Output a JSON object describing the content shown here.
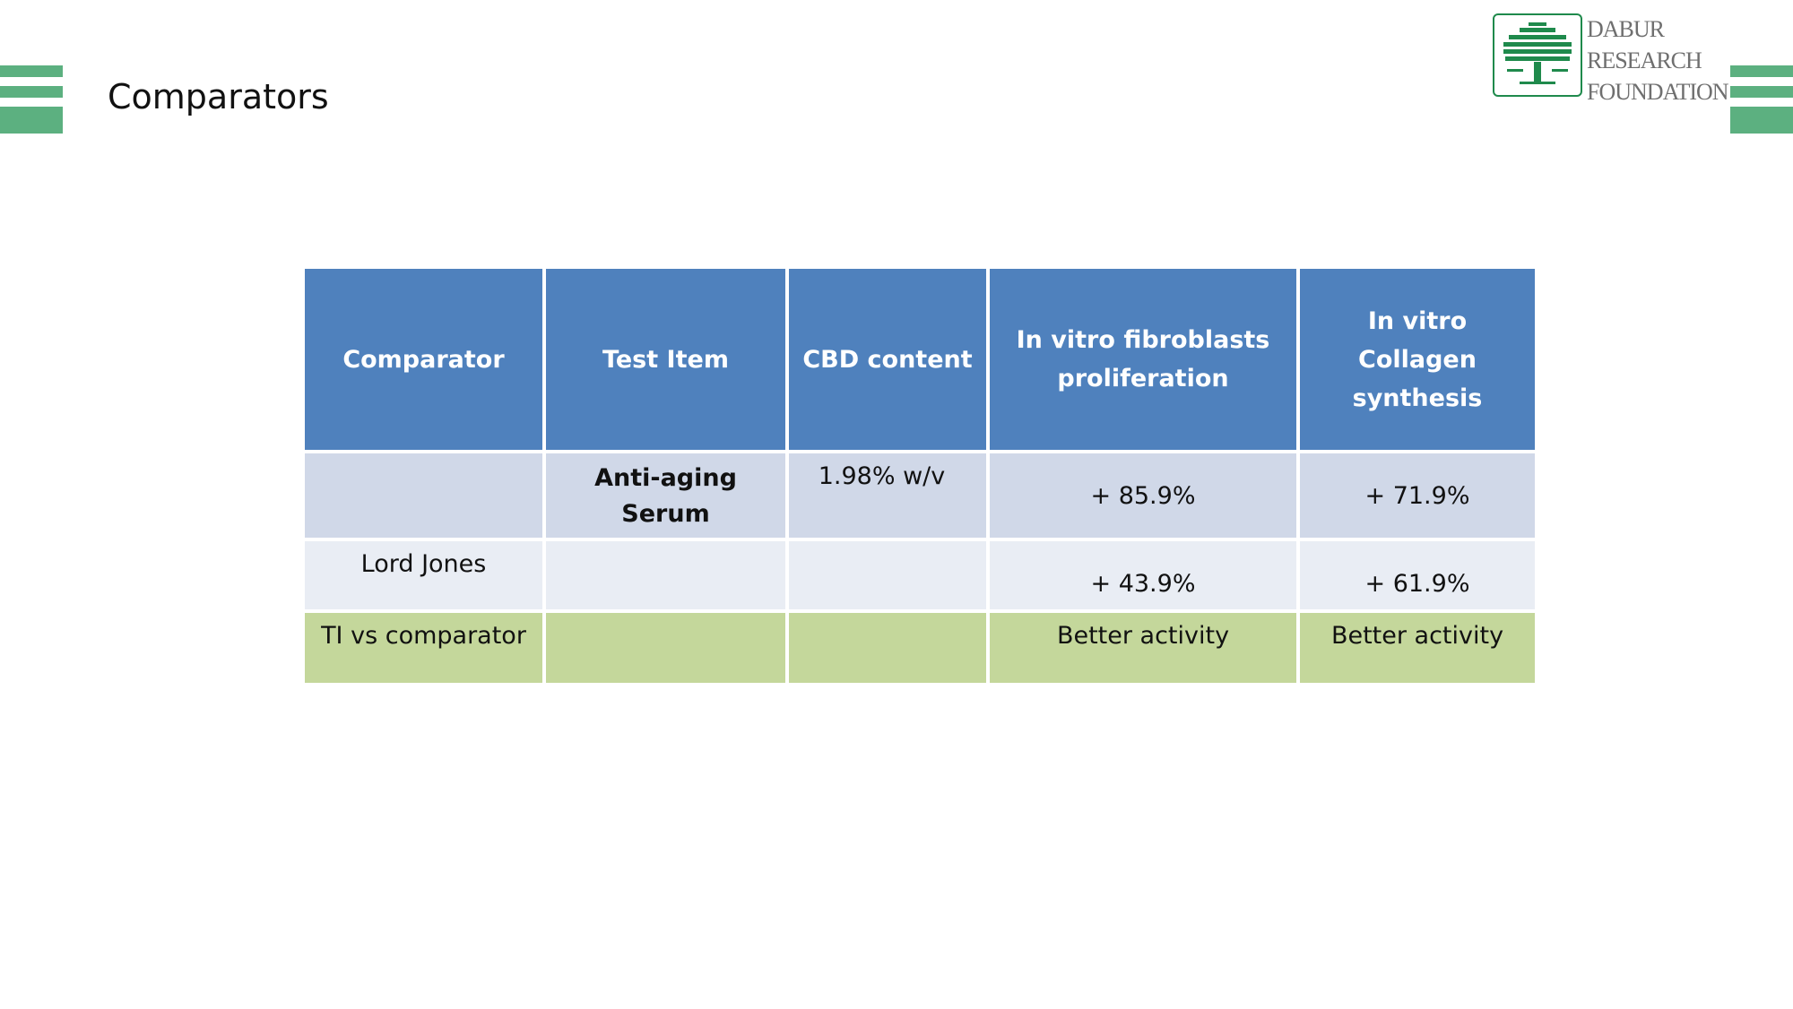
{
  "slide": {
    "title": "Comparators"
  },
  "logo": {
    "line1": "DABUR",
    "line2": "RESEARCH",
    "line3": "FOUNDATION",
    "icon": "tree-icon"
  },
  "colors": {
    "header_bg": "#4f81bd",
    "row1_bg": "#d0d8e8",
    "row2_bg": "#e9edf4",
    "summary_bg": "#c4d79b",
    "accent_bars": "#5cb080",
    "logo_green": "#1f8a4c"
  },
  "table": {
    "headers": [
      "Comparator",
      "Test Item",
      "CBD content",
      "In vitro fibroblasts proliferation",
      "In vitro Collagen synthesis"
    ],
    "rows": [
      [
        "",
        "Anti-aging Serum",
        "1.98% w/v",
        "+ 85.9%",
        "+ 71.9%"
      ],
      [
        "Lord Jones",
        "",
        "",
        "+ 43.9%",
        "+ 61.9%"
      ],
      [
        "TI vs comparator",
        "",
        "",
        "Better activity",
        "Better activity"
      ]
    ]
  }
}
